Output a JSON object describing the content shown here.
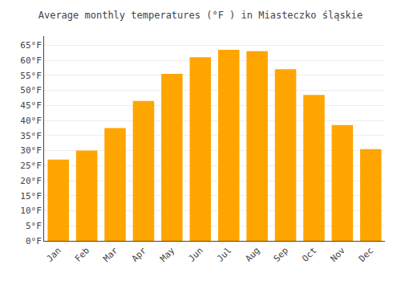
{
  "chart_data": {
    "type": "bar",
    "title": "Average monthly temperatures (°F ) in Miasteczko śląskie",
    "categories": [
      "Jan",
      "Feb",
      "Mar",
      "Apr",
      "May",
      "Jun",
      "Jul",
      "Aug",
      "Sep",
      "Oct",
      "Nov",
      "Dec"
    ],
    "values": [
      27,
      30,
      37.5,
      46.5,
      55.5,
      61,
      63.5,
      63,
      57,
      48.5,
      38.5,
      30.5
    ],
    "color": "#FFA500",
    "ylim": [
      0,
      68
    ],
    "yticks": [
      {
        "value": 0,
        "label": "0°F"
      },
      {
        "value": 5,
        "label": "5°F"
      },
      {
        "value": 10,
        "label": "10°F"
      },
      {
        "value": 15,
        "label": "15°F"
      },
      {
        "value": 20,
        "label": "20°F"
      },
      {
        "value": 25,
        "label": "25°F"
      },
      {
        "value": 30,
        "label": "30°F"
      },
      {
        "value": 35,
        "label": "35°F"
      },
      {
        "value": 40,
        "label": "40°F"
      },
      {
        "value": 45,
        "label": "45°F"
      },
      {
        "value": 50,
        "label": "50°F"
      },
      {
        "value": 55,
        "label": "55°F"
      },
      {
        "value": 60,
        "label": "60°F"
      },
      {
        "value": 65,
        "label": "65°F"
      }
    ],
    "grid": true
  }
}
